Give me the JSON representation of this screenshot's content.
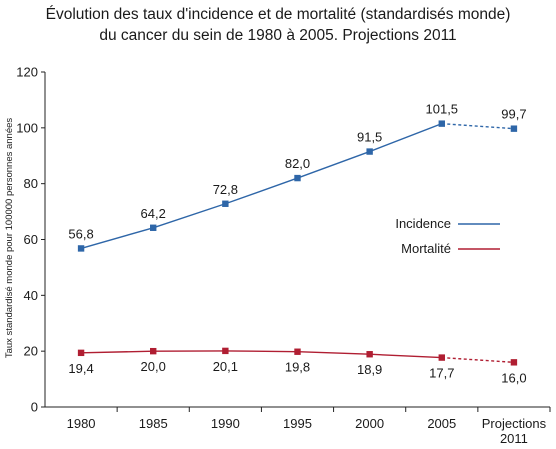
{
  "chart_data": {
    "type": "line",
    "title_line1": "Évolution des taux d'incidence et de mortalité (standardisés monde)",
    "title_line2": "du cancer du sein de 1980 à 2005. Projections 2011",
    "ylabel": "Taux standardisé monde pour 100000 personnes années",
    "xlabel": "",
    "ylim": [
      0,
      120
    ],
    "yticks": [
      0,
      20,
      40,
      60,
      80,
      100,
      120
    ],
    "categories": [
      "1980",
      "1985",
      "1990",
      "1995",
      "2000",
      "2005",
      "Projections 2011"
    ],
    "category_label_lines": [
      [
        "1980"
      ],
      [
        "1985"
      ],
      [
        "1990"
      ],
      [
        "1995"
      ],
      [
        "2000"
      ],
      [
        "2005"
      ],
      [
        "Projections",
        "2011"
      ]
    ],
    "grid": false,
    "legend_position": "right",
    "series": [
      {
        "name": "Incidence",
        "color": "#2e66a8",
        "values": [
          56.8,
          64.2,
          72.8,
          82.0,
          91.5,
          101.5,
          99.7
        ],
        "labels": [
          "56,8",
          "64,2",
          "72,8",
          "82,0",
          "91,5",
          "101,5",
          "99,7"
        ],
        "projection_from_index": 5,
        "label_position": "above"
      },
      {
        "name": "Mortalité",
        "color": "#b01e32",
        "values": [
          19.4,
          20.0,
          20.1,
          19.8,
          18.9,
          17.7,
          16.0
        ],
        "labels": [
          "19,4",
          "20,0",
          "20,1",
          "19,8",
          "18,9",
          "17,7",
          "16,0"
        ],
        "projection_from_index": 5,
        "label_position": "below"
      }
    ]
  }
}
